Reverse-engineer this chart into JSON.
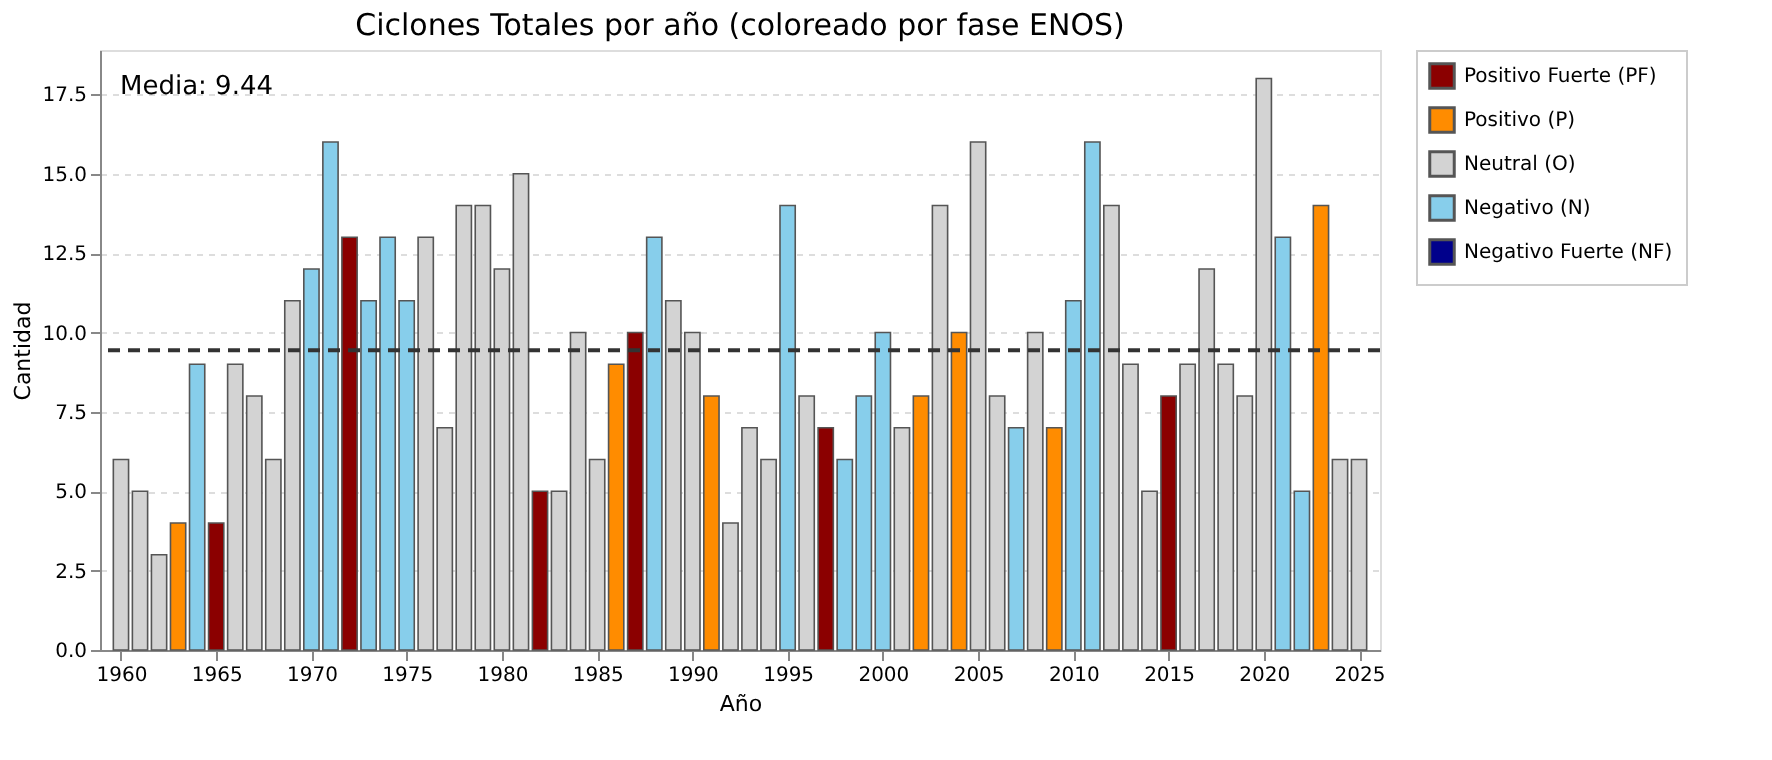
{
  "chart_data": {
    "type": "bar",
    "title": "Ciclones Totales por año (coloreado por fase ENOS)",
    "xlabel": "Año",
    "ylabel": "Cantidad",
    "x": [
      1960,
      1961,
      1962,
      1963,
      1964,
      1965,
      1966,
      1967,
      1968,
      1969,
      1970,
      1971,
      1972,
      1973,
      1974,
      1975,
      1976,
      1977,
      1978,
      1979,
      1980,
      1981,
      1982,
      1983,
      1984,
      1985,
      1986,
      1987,
      1988,
      1989,
      1990,
      1991,
      1992,
      1993,
      1994,
      1995,
      1996,
      1997,
      1998,
      1999,
      2000,
      2001,
      2002,
      2003,
      2004,
      2005,
      2006,
      2007,
      2008,
      2009,
      2010,
      2011,
      2012,
      2013,
      2014,
      2015,
      2016,
      2017,
      2018,
      2019,
      2020,
      2021,
      2022,
      2023,
      2024,
      2025
    ],
    "series": [
      {
        "name": "Positivo Fuerte (PF)",
        "color": "#8b0000",
        "values": [
          null,
          null,
          null,
          null,
          null,
          4,
          null,
          null,
          null,
          null,
          null,
          null,
          13,
          null,
          null,
          null,
          null,
          null,
          null,
          null,
          null,
          null,
          5,
          null,
          null,
          null,
          null,
          10,
          null,
          null,
          null,
          null,
          null,
          null,
          null,
          null,
          null,
          7,
          null,
          null,
          null,
          null,
          null,
          null,
          null,
          null,
          null,
          null,
          null,
          null,
          null,
          null,
          null,
          null,
          null,
          8,
          null,
          null,
          null,
          null,
          null,
          null,
          null,
          null,
          null,
          null
        ]
      },
      {
        "name": "Positivo (P)",
        "color": "#ff8c00",
        "values": [
          null,
          null,
          null,
          4,
          null,
          null,
          null,
          null,
          null,
          null,
          null,
          null,
          null,
          null,
          null,
          null,
          null,
          null,
          null,
          null,
          null,
          null,
          null,
          null,
          null,
          null,
          9,
          null,
          null,
          null,
          null,
          8,
          null,
          null,
          null,
          null,
          null,
          null,
          null,
          null,
          null,
          null,
          8,
          null,
          10,
          null,
          null,
          null,
          null,
          7,
          null,
          null,
          null,
          null,
          null,
          null,
          null,
          null,
          null,
          null,
          null,
          null,
          null,
          14,
          null,
          null
        ]
      },
      {
        "name": "Neutral (O)",
        "color": "#d3d3d3",
        "values": [
          6,
          5,
          3,
          null,
          null,
          null,
          9,
          8,
          6,
          11,
          null,
          null,
          null,
          null,
          null,
          null,
          13,
          7,
          14,
          14,
          12,
          15,
          null,
          5,
          10,
          6,
          null,
          null,
          null,
          11,
          10,
          null,
          4,
          7,
          6,
          null,
          8,
          null,
          null,
          null,
          null,
          7,
          null,
          14,
          null,
          16,
          8,
          null,
          10,
          null,
          null,
          null,
          14,
          9,
          5,
          null,
          9,
          12,
          9,
          8,
          18,
          null,
          null,
          null,
          6,
          6
        ]
      },
      {
        "name": "Negativo (N)",
        "color": "#87ceeb",
        "values": [
          null,
          null,
          null,
          null,
          9,
          null,
          null,
          null,
          null,
          null,
          12,
          16,
          null,
          11,
          13,
          11,
          null,
          null,
          null,
          null,
          null,
          null,
          null,
          null,
          null,
          null,
          null,
          null,
          13,
          null,
          null,
          null,
          null,
          null,
          null,
          14,
          null,
          null,
          6,
          8,
          10,
          null,
          null,
          null,
          null,
          null,
          null,
          7,
          null,
          null,
          11,
          16,
          null,
          null,
          null,
          null,
          null,
          null,
          null,
          null,
          null,
          13,
          5,
          null,
          null,
          null
        ]
      },
      {
        "name": "Negativo Fuerte (NF)",
        "color": "#00008b",
        "values": [
          null,
          null,
          null,
          null,
          null,
          null,
          null,
          null,
          null,
          null,
          null,
          null,
          null,
          null,
          null,
          null,
          null,
          null,
          null,
          null,
          null,
          null,
          null,
          null,
          null,
          null,
          null,
          null,
          null,
          null,
          null,
          null,
          null,
          null,
          null,
          null,
          null,
          null,
          null,
          null,
          null,
          null,
          null,
          null,
          null,
          null,
          null,
          null,
          null,
          null,
          null,
          null,
          null,
          null,
          null,
          null,
          null,
          null,
          null,
          null,
          null,
          null,
          null,
          null,
          null,
          null
        ]
      }
    ],
    "xlim": [
      1958.9,
      2026.1
    ],
    "xticks": [
      1960,
      1965,
      1970,
      1975,
      1980,
      1985,
      1990,
      1995,
      2000,
      2005,
      2010,
      2015,
      2020,
      2025
    ],
    "ylim": [
      0,
      18.9
    ],
    "yticks": [
      {
        "value": 0,
        "label": "0.0"
      },
      2.5,
      {
        "value": 5,
        "label": "5.0"
      },
      7.5,
      {
        "value": 10,
        "label": "10.0"
      },
      12.5,
      {
        "value": 15,
        "label": "15.0"
      },
      17.5
    ],
    "ref_lines": [
      {
        "axis": "y",
        "value": 9.44,
        "color": "#333333",
        "line_style": "dashed"
      }
    ],
    "annotations": [
      "Media: 9.44"
    ],
    "grid": "y",
    "legend": "right"
  }
}
